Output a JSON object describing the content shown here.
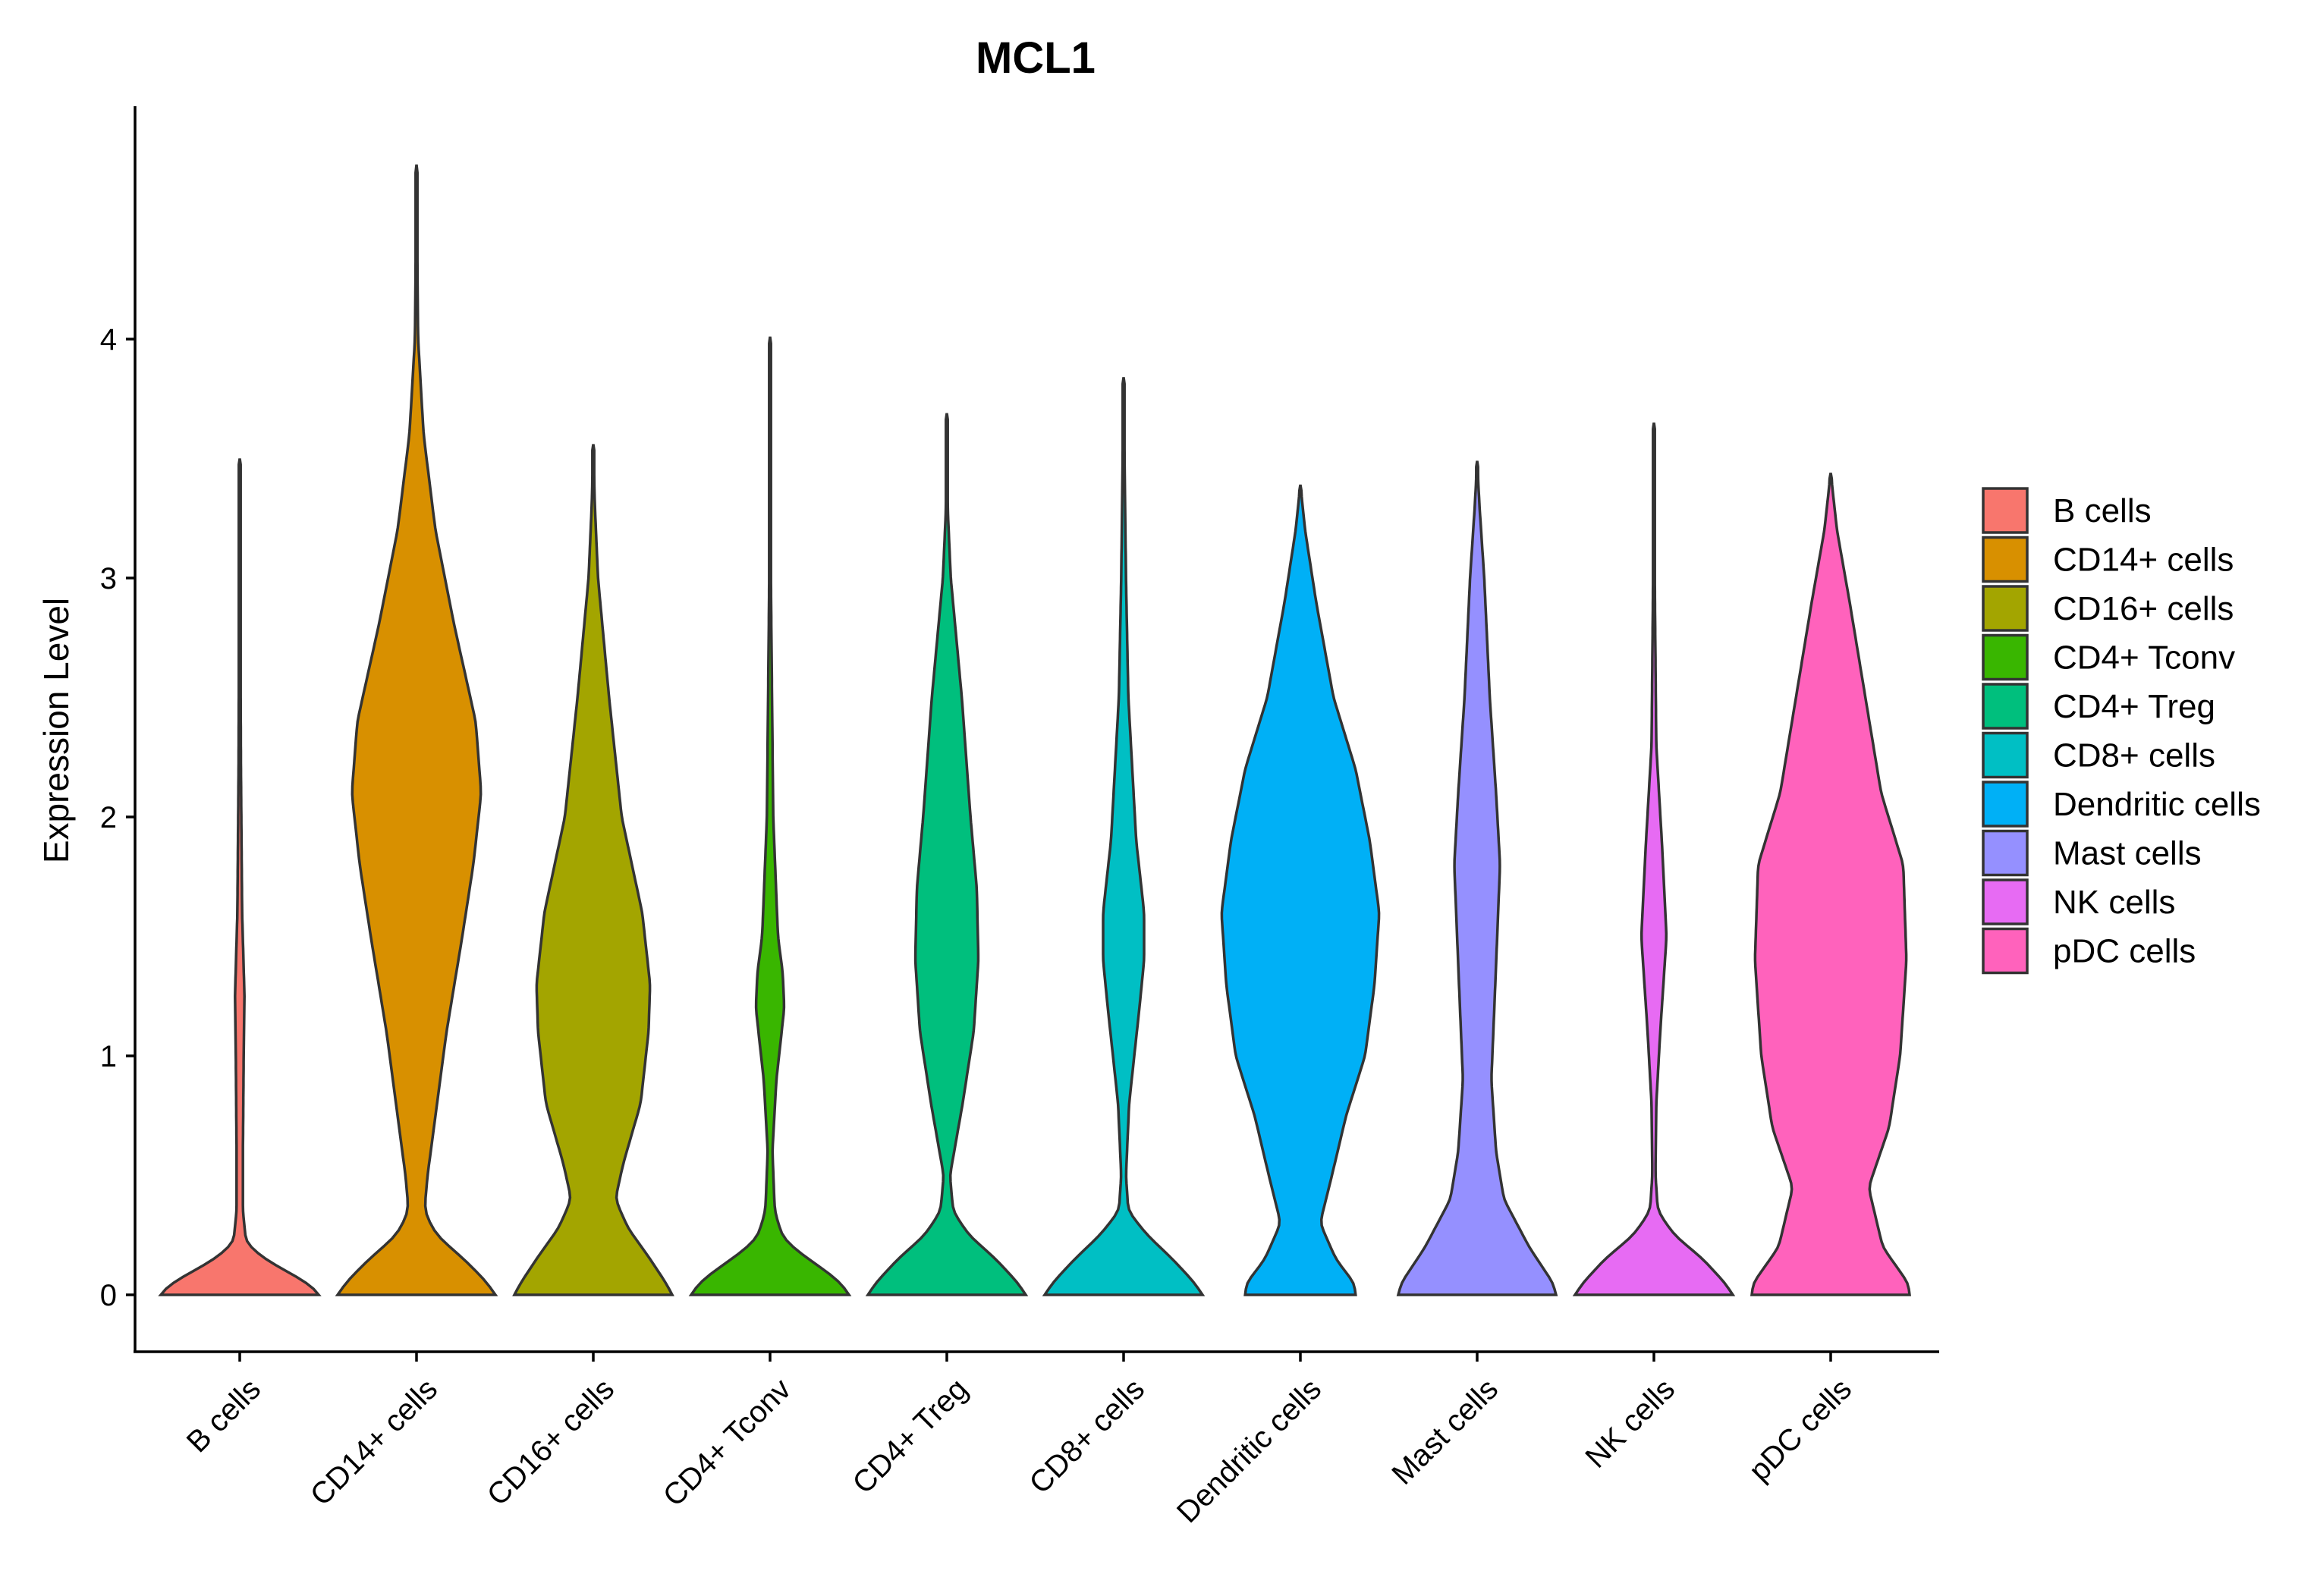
{
  "chart_data": {
    "type": "violin",
    "title": "MCL1",
    "xlabel": "",
    "ylabel": "Expression Level",
    "ylim": [
      -0.23,
      5.0
    ],
    "yticks": [
      "0",
      "1",
      "2",
      "3",
      "4"
    ],
    "grid": false,
    "legend_position": "right",
    "categories": [
      "B cells",
      "CD14+ cells",
      "CD16+ cells",
      "CD4+ Tconv",
      "CD4+ Treg",
      "CD8+ cells",
      "Dendritic cells",
      "Mast cells",
      "NK cells",
      "pDC cells"
    ],
    "colors": [
      "#F8766D",
      "#D89000",
      "#A3A500",
      "#39B600",
      "#00BF7D",
      "#00BFC4",
      "#00B0F6",
      "#9590FF",
      "#E76BF3",
      "#FF62BC"
    ],
    "series": [
      {
        "name": "B cells",
        "max": 3.5,
        "profile": [
          [
            0,
            1.0
          ],
          [
            0.03,
            0.94
          ],
          [
            0.08,
            0.7
          ],
          [
            0.13,
            0.42
          ],
          [
            0.17,
            0.24
          ],
          [
            0.22,
            0.08
          ],
          [
            0.35,
            0.04
          ],
          [
            0.6,
            0.04
          ],
          [
            1.0,
            0.05
          ],
          [
            1.25,
            0.06
          ],
          [
            1.6,
            0.03
          ],
          [
            2.2,
            0.015
          ],
          [
            3.0,
            0.006
          ],
          [
            3.5,
            0.0
          ]
        ]
      },
      {
        "name": "CD14+ cells",
        "max": 4.73,
        "profile": [
          [
            0,
            1.0
          ],
          [
            0.05,
            0.9
          ],
          [
            0.15,
            0.6
          ],
          [
            0.25,
            0.25
          ],
          [
            0.35,
            0.1
          ],
          [
            0.5,
            0.14
          ],
          [
            0.8,
            0.26
          ],
          [
            1.1,
            0.38
          ],
          [
            1.5,
            0.58
          ],
          [
            1.8,
            0.72
          ],
          [
            2.1,
            0.82
          ],
          [
            2.4,
            0.75
          ],
          [
            2.8,
            0.48
          ],
          [
            3.2,
            0.24
          ],
          [
            3.6,
            0.09
          ],
          [
            4.0,
            0.02
          ],
          [
            4.73,
            0.0
          ]
        ]
      },
      {
        "name": "CD16+ cells",
        "max": 3.56,
        "profile": [
          [
            0,
            1.0
          ],
          [
            0.05,
            0.92
          ],
          [
            0.15,
            0.72
          ],
          [
            0.28,
            0.44
          ],
          [
            0.4,
            0.28
          ],
          [
            0.55,
            0.38
          ],
          [
            0.8,
            0.6
          ],
          [
            1.1,
            0.7
          ],
          [
            1.3,
            0.72
          ],
          [
            1.6,
            0.62
          ],
          [
            2.0,
            0.36
          ],
          [
            2.5,
            0.2
          ],
          [
            3.0,
            0.06
          ],
          [
            3.3,
            0.02
          ],
          [
            3.56,
            0.0
          ]
        ]
      },
      {
        "name": "CD4+ Tconv",
        "max": 4.01,
        "profile": [
          [
            0,
            1.0
          ],
          [
            0.05,
            0.9
          ],
          [
            0.12,
            0.62
          ],
          [
            0.18,
            0.36
          ],
          [
            0.24,
            0.16
          ],
          [
            0.35,
            0.06
          ],
          [
            0.6,
            0.03
          ],
          [
            0.9,
            0.08
          ],
          [
            1.2,
            0.18
          ],
          [
            1.35,
            0.16
          ],
          [
            1.5,
            0.1
          ],
          [
            2.0,
            0.04
          ],
          [
            3.0,
            0.01
          ],
          [
            4.01,
            0.0
          ]
        ]
      },
      {
        "name": "CD4+ Treg",
        "max": 3.69,
        "profile": [
          [
            0,
            1.0
          ],
          [
            0.05,
            0.9
          ],
          [
            0.15,
            0.62
          ],
          [
            0.25,
            0.28
          ],
          [
            0.35,
            0.08
          ],
          [
            0.5,
            0.04
          ],
          [
            0.8,
            0.2
          ],
          [
            1.1,
            0.34
          ],
          [
            1.4,
            0.4
          ],
          [
            1.7,
            0.38
          ],
          [
            2.0,
            0.3
          ],
          [
            2.5,
            0.19
          ],
          [
            3.0,
            0.05
          ],
          [
            3.3,
            0.01
          ],
          [
            3.69,
            0.0
          ]
        ]
      },
      {
        "name": "CD8+ cells",
        "max": 3.84,
        "profile": [
          [
            0,
            1.0
          ],
          [
            0.05,
            0.9
          ],
          [
            0.15,
            0.62
          ],
          [
            0.25,
            0.3
          ],
          [
            0.35,
            0.06
          ],
          [
            0.5,
            0.03
          ],
          [
            0.8,
            0.07
          ],
          [
            1.2,
            0.2
          ],
          [
            1.4,
            0.26
          ],
          [
            1.6,
            0.26
          ],
          [
            1.9,
            0.16
          ],
          [
            2.5,
            0.06
          ],
          [
            3.0,
            0.03
          ],
          [
            3.84,
            0.0
          ]
        ]
      },
      {
        "name": "Dendritic cells",
        "max": 3.39,
        "profile": [
          [
            0,
            0.7
          ],
          [
            0.05,
            0.68
          ],
          [
            0.15,
            0.45
          ],
          [
            0.3,
            0.25
          ],
          [
            0.5,
            0.4
          ],
          [
            0.75,
            0.58
          ],
          [
            1.0,
            0.82
          ],
          [
            1.3,
            0.94
          ],
          [
            1.6,
            1.0
          ],
          [
            1.9,
            0.88
          ],
          [
            2.2,
            0.7
          ],
          [
            2.5,
            0.42
          ],
          [
            2.9,
            0.2
          ],
          [
            3.2,
            0.06
          ],
          [
            3.39,
            0.0
          ]
        ]
      },
      {
        "name": "Mast cells",
        "max": 3.49,
        "profile": [
          [
            0,
            1.0
          ],
          [
            0.05,
            0.96
          ],
          [
            0.2,
            0.66
          ],
          [
            0.4,
            0.34
          ],
          [
            0.6,
            0.24
          ],
          [
            0.9,
            0.18
          ],
          [
            1.3,
            0.23
          ],
          [
            1.8,
            0.29
          ],
          [
            2.1,
            0.24
          ],
          [
            2.5,
            0.16
          ],
          [
            3.0,
            0.09
          ],
          [
            3.3,
            0.03
          ],
          [
            3.49,
            0.0
          ]
        ]
      },
      {
        "name": "NK cells",
        "max": 3.65,
        "profile": [
          [
            0,
            1.0
          ],
          [
            0.05,
            0.9
          ],
          [
            0.15,
            0.62
          ],
          [
            0.25,
            0.26
          ],
          [
            0.35,
            0.05
          ],
          [
            0.5,
            0.02
          ],
          [
            0.8,
            0.03
          ],
          [
            1.1,
            0.08
          ],
          [
            1.5,
            0.16
          ],
          [
            1.9,
            0.1
          ],
          [
            2.3,
            0.03
          ],
          [
            3.0,
            0.01
          ],
          [
            3.65,
            0.0
          ]
        ]
      },
      {
        "name": "pDC cells",
        "max": 3.44,
        "profile": [
          [
            0,
            1.0
          ],
          [
            0.05,
            0.98
          ],
          [
            0.2,
            0.66
          ],
          [
            0.45,
            0.48
          ],
          [
            0.7,
            0.74
          ],
          [
            1.0,
            0.88
          ],
          [
            1.4,
            0.96
          ],
          [
            1.8,
            0.92
          ],
          [
            2.1,
            0.64
          ],
          [
            2.5,
            0.44
          ],
          [
            2.9,
            0.24
          ],
          [
            3.2,
            0.08
          ],
          [
            3.38,
            0.02
          ],
          [
            3.44,
            0.0
          ]
        ]
      }
    ]
  }
}
